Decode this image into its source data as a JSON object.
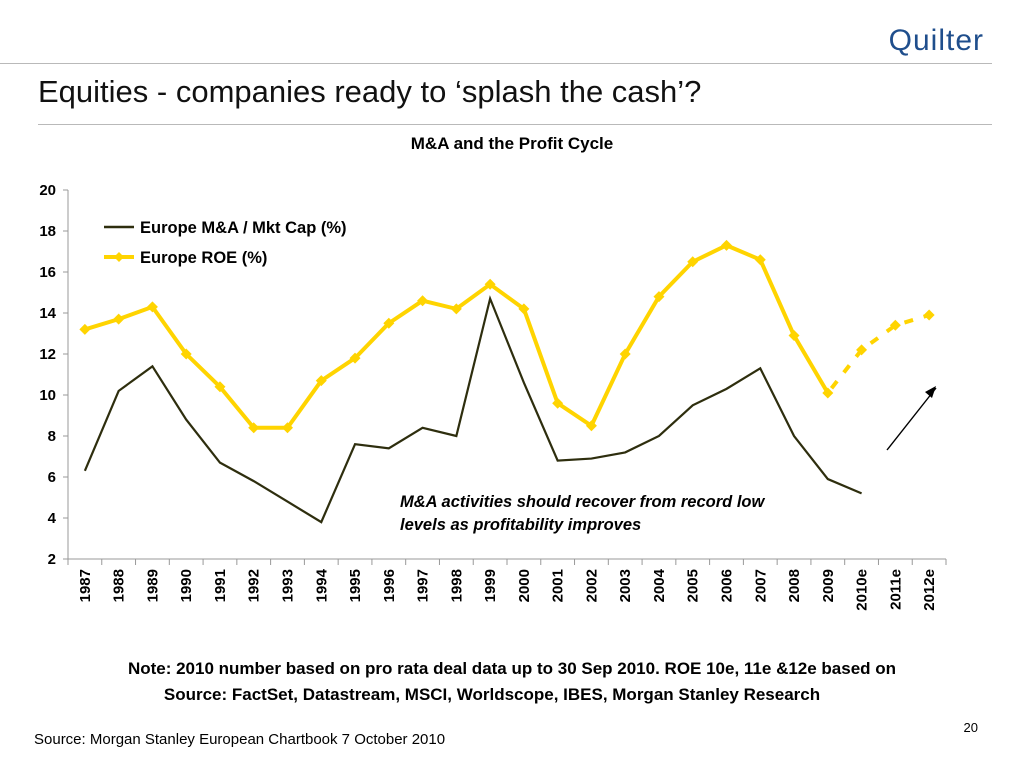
{
  "logo": "Quilter",
  "slide_title": "Equities - companies ready to ‘splash the cash’?",
  "chart_data": {
    "type": "line",
    "title": "M&A and the Profit Cycle",
    "categories": [
      "1987",
      "1988",
      "1989",
      "1990",
      "1991",
      "1992",
      "1993",
      "1994",
      "1995",
      "1996",
      "1997",
      "1998",
      "1999",
      "2000",
      "2001",
      "2002",
      "2003",
      "2004",
      "2005",
      "2006",
      "2007",
      "2008",
      "2009",
      "2010e",
      "2011e",
      "2012e"
    ],
    "ylim": [
      2,
      20
    ],
    "yticks": [
      2,
      4,
      6,
      8,
      10,
      12,
      14,
      16,
      18,
      20
    ],
    "legend_position": "top-left",
    "series": [
      {
        "name": "Europe M&A / Mkt Cap (%)",
        "color": "#2e2e0e",
        "marker": "none",
        "values": [
          6.3,
          10.2,
          11.4,
          8.8,
          6.7,
          5.8,
          4.8,
          3.8,
          7.6,
          7.4,
          8.4,
          8.0,
          14.7,
          10.6,
          6.8,
          6.9,
          7.2,
          8.0,
          9.5,
          10.3,
          11.3,
          8.0,
          5.9,
          5.2,
          null,
          null
        ]
      },
      {
        "name": "Europe ROE (%)",
        "color": "#ffd400",
        "marker": "diamond",
        "values": [
          13.2,
          13.7,
          14.3,
          12.0,
          10.4,
          8.4,
          8.4,
          10.7,
          11.8,
          13.5,
          14.6,
          14.2,
          15.4,
          14.2,
          9.6,
          8.5,
          12.0,
          14.8,
          16.5,
          17.3,
          16.6,
          12.9,
          10.1,
          12.2,
          13.4,
          13.9
        ],
        "estimate_from_index": 22
      }
    ],
    "annotation": "M&A activities should recover from record low levels as profitability improves"
  },
  "note": "Note: 2010 number based on pro rata deal data up to 30 Sep 2010. ROE 10e, 11e &12e based on",
  "note_source": "Source: FactSet, Datastream, MSCI, Worldscope, IBES, Morgan Stanley Research",
  "source_footer": "Source: Morgan Stanley European Chartbook 7 October 2010",
  "page_number": "20"
}
